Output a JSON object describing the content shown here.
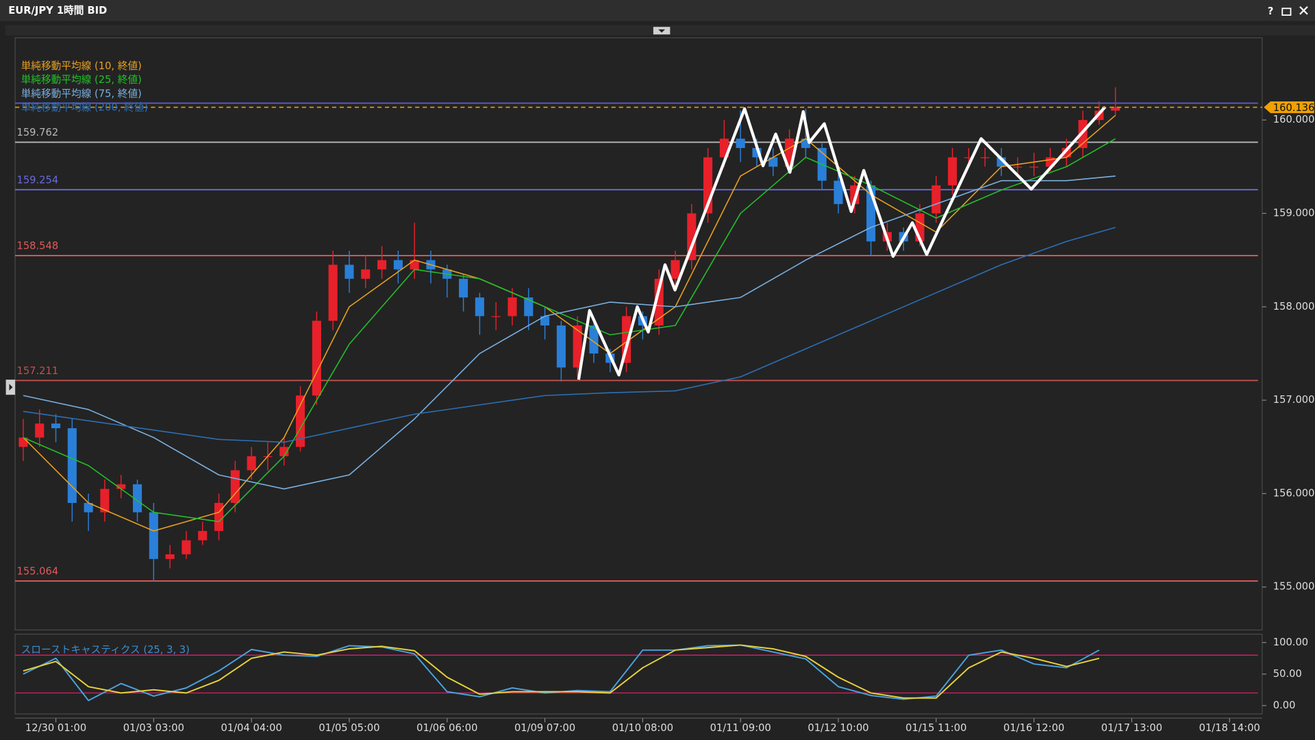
{
  "window": {
    "title": "EUR/JPY 1時間 BID",
    "help": "?"
  },
  "chart_data": [
    {
      "type": "candlestick",
      "up_color": "#e8202a",
      "down_color": "#2a7fd8",
      "xlim": [
        -0.5,
        76
      ],
      "xticks": [
        {
          "value": 2,
          "label": "12/30 01:00"
        },
        {
          "value": 8,
          "label": "01/03 03:00"
        },
        {
          "value": 14,
          "label": "01/04 04:00"
        },
        {
          "value": 20,
          "label": "01/05 05:00"
        },
        {
          "value": 26,
          "label": "01/06 06:00"
        },
        {
          "value": 32,
          "label": "01/09 07:00"
        },
        {
          "value": 38,
          "label": "01/10 08:00"
        },
        {
          "value": 44,
          "label": "01/11 09:00"
        },
        {
          "value": 50,
          "label": "01/12 10:00"
        },
        {
          "value": 56,
          "label": "01/15 11:00"
        },
        {
          "value": 62,
          "label": "01/16 12:00"
        },
        {
          "value": 68,
          "label": "01/17 13:00"
        },
        {
          "value": 74,
          "label": "01/18 14:00"
        }
      ],
      "ylim": [
        154.54,
        160.88
      ],
      "yticks": [
        {
          "value": 155,
          "label": "155.000"
        },
        {
          "value": 156,
          "label": "156.000"
        },
        {
          "value": 157,
          "label": "157.000"
        },
        {
          "value": 158,
          "label": "158.000"
        },
        {
          "value": 159,
          "label": "159.000"
        },
        {
          "value": 160,
          "label": "160.000"
        }
      ],
      "x": [
        0,
        1,
        2,
        3,
        4,
        5,
        6,
        7,
        8,
        9,
        10,
        11,
        12,
        13,
        14,
        15,
        16,
        17,
        18,
        19,
        20,
        21,
        22,
        23,
        24,
        25,
        26,
        27,
        28,
        29,
        30,
        31,
        32,
        33,
        34,
        35,
        36,
        37,
        38,
        39,
        40,
        41,
        42,
        43,
        44,
        45,
        46,
        47,
        48,
        49,
        50,
        51,
        52,
        53,
        54,
        55,
        56,
        57,
        58,
        59,
        60,
        61,
        62,
        63,
        64,
        65,
        66,
        67
      ],
      "open": [
        156.5,
        156.6,
        156.75,
        156.7,
        155.9,
        155.8,
        156.05,
        156.1,
        155.8,
        155.3,
        155.35,
        155.5,
        155.6,
        155.9,
        156.25,
        156.4,
        156.4,
        156.5,
        157.05,
        157.85,
        158.45,
        158.3,
        158.4,
        158.5,
        158.4,
        158.5,
        158.4,
        158.3,
        158.1,
        157.9,
        157.9,
        158.1,
        157.9,
        157.8,
        157.35,
        157.8,
        157.5,
        157.4,
        157.9,
        157.8,
        158.3,
        158.5,
        159.0,
        159.6,
        159.8,
        159.7,
        159.6,
        159.5,
        159.8,
        159.7,
        159.35,
        159.1,
        159.3,
        158.7,
        158.8,
        158.7,
        159.0,
        159.3,
        159.6,
        159.6,
        159.6,
        159.5,
        159.5,
        159.5,
        159.6,
        159.7,
        160.0,
        160.1
      ],
      "high": [
        156.8,
        156.9,
        156.85,
        156.8,
        156.0,
        156.15,
        156.2,
        156.15,
        155.9,
        155.45,
        155.6,
        155.7,
        156.0,
        156.35,
        156.5,
        156.55,
        156.6,
        157.15,
        157.95,
        158.6,
        158.6,
        158.55,
        158.65,
        158.6,
        158.9,
        158.6,
        158.45,
        158.35,
        158.15,
        158.05,
        158.2,
        158.2,
        158.0,
        157.85,
        157.9,
        157.85,
        157.55,
        158.0,
        157.95,
        158.4,
        158.6,
        159.1,
        159.7,
        160.0,
        160.1,
        159.8,
        159.7,
        159.9,
        160.12,
        159.75,
        159.45,
        159.4,
        159.35,
        158.9,
        158.85,
        159.1,
        159.4,
        159.7,
        159.7,
        159.7,
        159.7,
        159.6,
        159.65,
        159.7,
        159.8,
        160.1,
        160.2,
        160.35
      ],
      "low": [
        156.35,
        156.5,
        156.55,
        155.7,
        155.6,
        155.7,
        155.95,
        155.7,
        155.06,
        155.2,
        155.3,
        155.45,
        155.5,
        155.8,
        156.15,
        156.25,
        156.3,
        156.45,
        156.95,
        157.75,
        158.15,
        158.2,
        158.3,
        158.25,
        158.3,
        158.25,
        158.1,
        157.95,
        157.7,
        157.75,
        157.8,
        157.75,
        157.65,
        157.2,
        157.25,
        157.4,
        157.3,
        157.3,
        157.65,
        157.7,
        158.2,
        158.4,
        158.9,
        159.5,
        159.55,
        159.5,
        159.4,
        159.45,
        159.6,
        159.25,
        159.0,
        159.0,
        158.55,
        158.6,
        158.6,
        158.65,
        158.9,
        159.2,
        159.5,
        159.5,
        159.4,
        159.4,
        159.4,
        159.45,
        159.5,
        159.6,
        159.95,
        160.05
      ],
      "close": [
        156.6,
        156.75,
        156.7,
        155.9,
        155.8,
        156.05,
        156.1,
        155.8,
        155.3,
        155.35,
        155.5,
        155.6,
        155.9,
        156.25,
        156.4,
        156.4,
        156.5,
        157.05,
        157.85,
        158.45,
        158.3,
        158.4,
        158.5,
        158.4,
        158.5,
        158.4,
        158.3,
        158.1,
        157.9,
        157.9,
        158.1,
        157.9,
        157.8,
        157.35,
        157.8,
        157.5,
        157.4,
        157.9,
        157.8,
        158.3,
        158.5,
        159.0,
        159.6,
        159.8,
        159.7,
        159.6,
        159.5,
        159.8,
        159.7,
        159.35,
        159.1,
        159.3,
        158.7,
        158.8,
        158.7,
        159.0,
        159.3,
        159.6,
        159.6,
        159.6,
        159.5,
        159.5,
        159.5,
        159.6,
        159.7,
        160.0,
        160.1,
        160.14
      ],
      "series": [
        {
          "name": "単純移動平均線 (10, 終値)",
          "color": "#e8a020",
          "x": [
            0,
            4,
            8,
            12,
            16,
            20,
            24,
            28,
            32,
            36,
            40,
            44,
            48,
            52,
            56,
            60,
            64,
            67
          ],
          "values": [
            156.6,
            155.9,
            155.6,
            155.8,
            156.6,
            158.0,
            158.5,
            158.3,
            158.0,
            157.5,
            158.0,
            159.4,
            159.8,
            159.2,
            158.8,
            159.5,
            159.6,
            160.05
          ]
        },
        {
          "name": "単純移動平均線 (25, 終値)",
          "color": "#22c02a",
          "x": [
            0,
            4,
            8,
            12,
            16,
            20,
            24,
            28,
            32,
            36,
            40,
            44,
            48,
            52,
            56,
            60,
            64,
            67
          ],
          "values": [
            156.6,
            156.3,
            155.8,
            155.7,
            156.4,
            157.6,
            158.4,
            158.3,
            158.0,
            157.7,
            157.8,
            159.0,
            159.6,
            159.3,
            158.95,
            159.25,
            159.5,
            159.8
          ]
        },
        {
          "name": "単純移動平均線 (75, 終値)",
          "color": "#7ab0e0",
          "x": [
            0,
            4,
            8,
            12,
            16,
            20,
            24,
            28,
            32,
            36,
            40,
            44,
            48,
            52,
            56,
            60,
            64,
            67
          ],
          "values": [
            157.05,
            156.9,
            156.6,
            156.2,
            156.05,
            156.2,
            156.8,
            157.5,
            157.9,
            158.05,
            158.0,
            158.1,
            158.5,
            158.85,
            159.1,
            159.35,
            159.35,
            159.4
          ]
        },
        {
          "name": "単純移動平均線 (200, 終値)",
          "color": "#2d6fb5",
          "x": [
            0,
            4,
            8,
            12,
            16,
            20,
            24,
            28,
            32,
            36,
            40,
            44,
            48,
            52,
            56,
            60,
            64,
            67
          ],
          "values": [
            156.88,
            156.78,
            156.68,
            156.58,
            156.55,
            156.7,
            156.85,
            156.95,
            157.05,
            157.08,
            157.1,
            157.25,
            157.55,
            157.85,
            158.15,
            158.45,
            158.7,
            158.85
          ]
        }
      ],
      "levels": [
        {
          "value": 160.18,
          "color": "#5a5ad0"
        },
        {
          "value": 159.762,
          "color": "#b8b8b8"
        },
        {
          "value": 159.254,
          "color": "#6a6ae0"
        },
        {
          "value": 158.548,
          "color": "#e05a5a"
        },
        {
          "value": 157.211,
          "color": "#c05050"
        },
        {
          "value": 155.064,
          "color": "#e05a5a"
        }
      ],
      "last_price": {
        "value": 160.136,
        "color": "#f0a000"
      },
      "zigzag": {
        "color": "#ffffff",
        "x": [
          34.07,
          34.74,
          36.54,
          37.67,
          38.34,
          39.37,
          39.98,
          44.25,
          45.38,
          46.16,
          47.03,
          47.85,
          48.21,
          49.14,
          50.79,
          51.56,
          53.36,
          54.54,
          55.42,
          58.76,
          61.84,
          66.37
        ],
        "values": [
          157.22,
          157.96,
          157.27,
          158.0,
          157.73,
          158.45,
          158.18,
          160.12,
          159.51,
          159.85,
          159.44,
          160.09,
          159.76,
          159.96,
          159.02,
          159.46,
          158.54,
          158.9,
          158.56,
          159.8,
          159.26,
          160.14
        ]
      }
    },
    {
      "type": "line",
      "title": "スローストキャスティクス (25, 3, 3)",
      "xlim": [
        -0.5,
        76
      ],
      "ylim": [
        -13.3,
        113.3
      ],
      "yticks": [
        {
          "value": 0,
          "label": "0.00"
        },
        {
          "value": 50,
          "label": "50.00"
        },
        {
          "value": 100,
          "label": "100.00"
        }
      ],
      "levels": [
        {
          "value": 80,
          "color": "#c02060"
        },
        {
          "value": 20,
          "color": "#c02060"
        }
      ],
      "series": [
        {
          "color": "#4aa3df",
          "x": [
            0,
            2,
            4,
            6,
            8,
            10,
            12,
            14,
            16,
            18,
            20,
            22,
            24,
            26,
            28,
            30,
            32,
            34,
            36,
            38,
            40,
            42,
            44,
            46,
            48,
            50,
            52,
            54,
            56,
            58,
            60,
            62,
            64,
            66
          ],
          "values": [
            50,
            75,
            8,
            35,
            15,
            28,
            55,
            89,
            80,
            78,
            95,
            93,
            82,
            22,
            14,
            28,
            20,
            24,
            22,
            88,
            88,
            95,
            96,
            85,
            74,
            30,
            16,
            10,
            15,
            80,
            88,
            66,
            60,
            88
          ]
        },
        {
          "color": "#e8d23a",
          "x": [
            0,
            2,
            4,
            6,
            8,
            10,
            12,
            14,
            16,
            18,
            20,
            22,
            24,
            26,
            28,
            30,
            32,
            34,
            36,
            38,
            40,
            42,
            44,
            46,
            48,
            50,
            52,
            54,
            56,
            58,
            60,
            62,
            64,
            66
          ],
          "values": [
            55,
            70,
            30,
            20,
            25,
            20,
            40,
            75,
            85,
            80,
            90,
            94,
            87,
            45,
            18,
            22,
            22,
            22,
            20,
            60,
            88,
            92,
            96,
            90,
            78,
            45,
            20,
            12,
            12,
            60,
            85,
            75,
            62,
            75
          ]
        }
      ]
    }
  ]
}
